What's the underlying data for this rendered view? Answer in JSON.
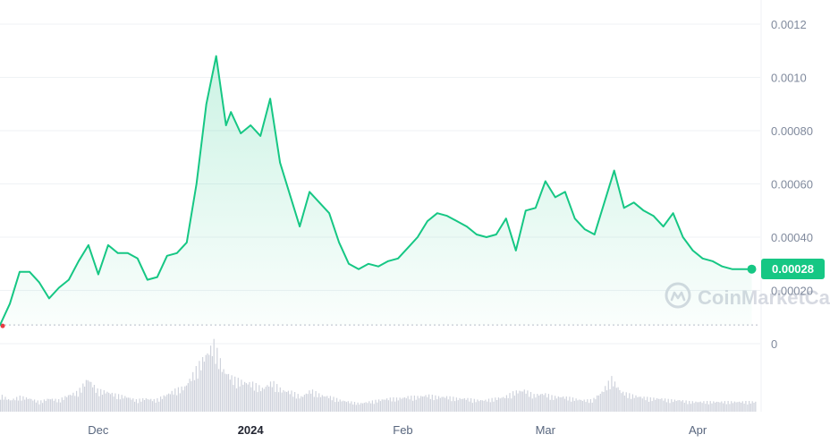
{
  "chart_data": {
    "type": "area",
    "title": "",
    "xlabel": "",
    "ylabel": "",
    "y_ticks": [
      "0.0012",
      "0.0010",
      "0.00080",
      "0.00060",
      "0.00040",
      "0.00020",
      "0"
    ],
    "y_tick_values": [
      0.0012,
      0.001,
      0.0008,
      0.0006,
      0.0004,
      0.0002,
      0
    ],
    "ylim": [
      0,
      0.0013
    ],
    "x_ticks": [
      {
        "label": "Dec",
        "x": "2023-12-01"
      },
      {
        "label": "2024",
        "x": "2024-01-01",
        "bold": true
      },
      {
        "label": "Feb",
        "x": "2024-02-01"
      },
      {
        "label": "Mar",
        "x": "2024-03-01"
      },
      {
        "label": "Apr",
        "x": "2024-04-01"
      }
    ],
    "xlim": [
      "2023-11-11",
      "2024-04-13"
    ],
    "current_price_label": "0.00028",
    "current_price": 0.00028,
    "baseline_value": 7e-05,
    "series": [
      {
        "x": [
          "2023-11-11",
          "2023-11-13",
          "2023-11-15",
          "2023-11-17",
          "2023-11-19",
          "2023-11-21",
          "2023-11-23",
          "2023-11-25",
          "2023-11-27",
          "2023-11-29",
          "2023-12-01",
          "2023-12-03",
          "2023-12-05",
          "2023-12-07",
          "2023-12-09",
          "2023-12-11",
          "2023-12-13",
          "2023-12-15",
          "2023-12-17",
          "2023-12-19",
          "2023-12-21",
          "2023-12-23",
          "2023-12-25",
          "2023-12-27",
          "2023-12-28",
          "2023-12-30",
          "2024-01-01",
          "2024-01-03",
          "2024-01-05",
          "2024-01-07",
          "2024-01-09",
          "2024-01-11",
          "2024-01-13",
          "2024-01-15",
          "2024-01-17",
          "2024-01-19",
          "2024-01-21",
          "2024-01-23",
          "2024-01-25",
          "2024-01-27",
          "2024-01-29",
          "2024-01-31",
          "2024-02-02",
          "2024-02-04",
          "2024-02-06",
          "2024-02-08",
          "2024-02-10",
          "2024-02-12",
          "2024-02-14",
          "2024-02-16",
          "2024-02-18",
          "2024-02-20",
          "2024-02-22",
          "2024-02-24",
          "2024-02-26",
          "2024-02-28",
          "2024-03-01",
          "2024-03-03",
          "2024-03-05",
          "2024-03-07",
          "2024-03-09",
          "2024-03-11",
          "2024-03-13",
          "2024-03-15",
          "2024-03-17",
          "2024-03-19",
          "2024-03-21",
          "2024-03-23",
          "2024-03-25",
          "2024-03-27",
          "2024-03-29",
          "2024-03-31",
          "2024-04-02",
          "2024-04-04",
          "2024-04-06",
          "2024-04-08",
          "2024-04-10",
          "2024-04-12"
        ],
        "values": [
          7e-05,
          0.00015,
          0.00027,
          0.00027,
          0.00023,
          0.00017,
          0.00021,
          0.00024,
          0.00031,
          0.00037,
          0.00026,
          0.00037,
          0.00034,
          0.00034,
          0.00032,
          0.00024,
          0.00025,
          0.00033,
          0.00034,
          0.00038,
          0.0006,
          0.0009,
          0.00108,
          0.00082,
          0.00087,
          0.00079,
          0.00082,
          0.00078,
          0.00092,
          0.00068,
          0.00056,
          0.00044,
          0.00057,
          0.00053,
          0.00049,
          0.00038,
          0.0003,
          0.00028,
          0.0003,
          0.00029,
          0.00031,
          0.00032,
          0.00036,
          0.0004,
          0.00046,
          0.00049,
          0.00048,
          0.00046,
          0.00044,
          0.00041,
          0.0004,
          0.00041,
          0.00047,
          0.00035,
          0.0005,
          0.00051,
          0.00061,
          0.00055,
          0.00057,
          0.00047,
          0.00043,
          0.00041,
          0.00053,
          0.00065,
          0.00051,
          0.00053,
          0.0005,
          0.00048,
          0.00044,
          0.00049,
          0.0004,
          0.00035,
          0.00032,
          0.00031,
          0.00029,
          0.00028,
          0.00028,
          0.00028
        ]
      }
    ],
    "volume": [
      0.1,
      0.07,
      0.09,
      0.08,
      0.06,
      0.08,
      0.07,
      0.1,
      0.12,
      0.2,
      0.13,
      0.12,
      0.1,
      0.09,
      0.07,
      0.08,
      0.07,
      0.1,
      0.13,
      0.15,
      0.24,
      0.33,
      0.41,
      0.25,
      0.2,
      0.18,
      0.17,
      0.14,
      0.18,
      0.13,
      0.12,
      0.09,
      0.13,
      0.1,
      0.09,
      0.07,
      0.06,
      0.05,
      0.06,
      0.07,
      0.08,
      0.08,
      0.09,
      0.09,
      0.1,
      0.09,
      0.09,
      0.08,
      0.08,
      0.07,
      0.07,
      0.08,
      0.09,
      0.12,
      0.13,
      0.1,
      0.11,
      0.09,
      0.09,
      0.08,
      0.07,
      0.07,
      0.12,
      0.2,
      0.12,
      0.1,
      0.09,
      0.08,
      0.08,
      0.07,
      0.07,
      0.06,
      0.06,
      0.06,
      0.06,
      0.06,
      0.06,
      0.06
    ],
    "line_color": "#16c784",
    "baseline_dot_color": "#ea3943",
    "grid": true
  },
  "watermark": {
    "text": "CoinMarketCap",
    "icon": "coinmarketcap-logo-icon"
  }
}
